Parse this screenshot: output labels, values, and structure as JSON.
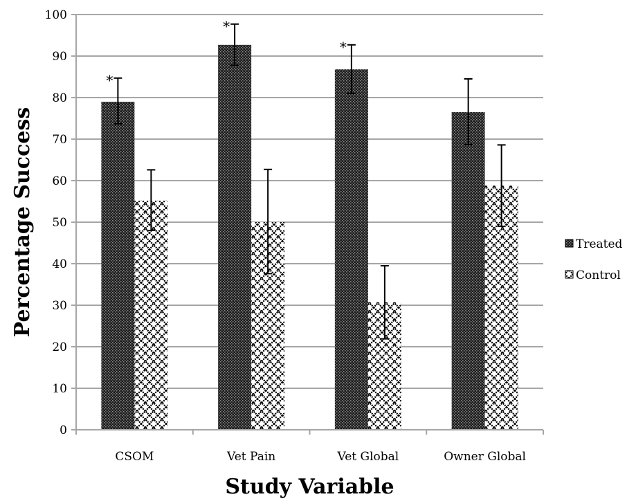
{
  "chart_data": {
    "type": "bar",
    "title": "",
    "xlabel": "Study Variable",
    "ylabel": "Percentage Success",
    "ylim": [
      0,
      100
    ],
    "yticks": [
      0,
      10,
      20,
      30,
      40,
      50,
      60,
      70,
      80,
      90,
      100
    ],
    "grid": true,
    "legend_position": "right",
    "categories": [
      "CSOM",
      "Vet Pain",
      "Vet Global",
      "Owner Global"
    ],
    "significance_symbol": "*",
    "series": [
      {
        "name": "Treated",
        "pattern": "dark-dots",
        "color": "#1a1a1a",
        "values": [
          79,
          92.7,
          86.8,
          76.5
        ],
        "error_low": [
          73.7,
          87.8,
          81.0,
          68.7
        ],
        "error_high": [
          84.7,
          97.7,
          92.7,
          84.5
        ],
        "significant": [
          true,
          true,
          true,
          false
        ]
      },
      {
        "name": "Control",
        "pattern": "crosshatch",
        "color": "#000000",
        "values": [
          55.2,
          50,
          30.7,
          58.8
        ],
        "error_low": [
          48.0,
          37.6,
          21.9,
          49.0
        ],
        "error_high": [
          62.6,
          62.7,
          39.5,
          68.6
        ],
        "significant": [
          false,
          false,
          false,
          false
        ]
      }
    ]
  }
}
